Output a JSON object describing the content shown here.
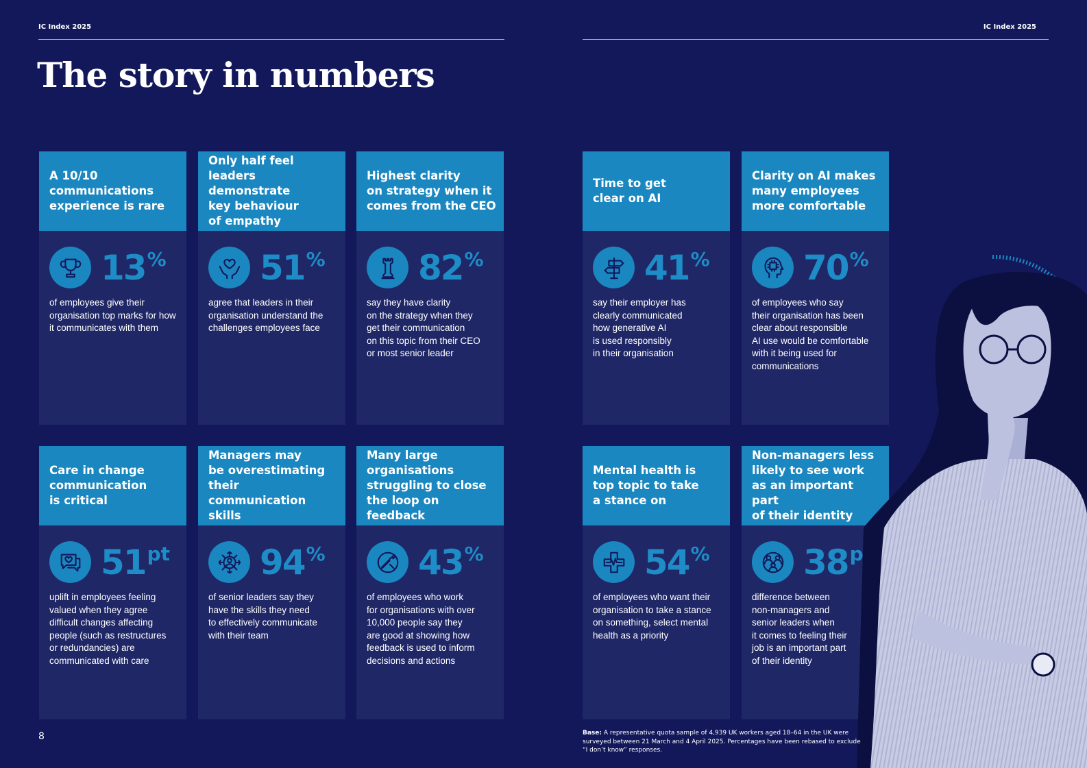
{
  "header": {
    "left_label": "IC Index 2025",
    "right_label": "IC Index 2025"
  },
  "page_title": "The story in numbers",
  "cards": [
    {
      "heading": "A 10/10\ncommunications\nexperience is rare",
      "icon": "trophy-icon",
      "number": "13",
      "unit": "%",
      "description": "of employees give their\norganisation top marks for how\nit communicates with them"
    },
    {
      "heading": "Only half feel\nleaders demonstrate\nkey behaviour\nof empathy",
      "icon": "heart-hands-icon",
      "number": "51",
      "unit": "%",
      "description": "agree that leaders in their\norganisation understand the\nchallenges employees face"
    },
    {
      "heading": "Highest clarity\non strategy when it\ncomes from the CEO",
      "icon": "chess-rook-icon",
      "number": "82",
      "unit": "%",
      "description": "say they have clarity\non the strategy when they\nget their communication\non this topic from their CEO\nor most senior leader"
    },
    {
      "heading": "Time to get\nclear on AI",
      "icon": "signpost-icon",
      "number": "41",
      "unit": "%",
      "description": "say their employer has\nclearly communicated\nhow generative AI\nis used responsibly\nin their organisation"
    },
    {
      "heading": "Clarity on AI makes\nmany employees\nmore comfortable",
      "icon": "head-chip-icon",
      "number": "70",
      "unit": "%",
      "description": "of employees who say\ntheir organisation has been\nclear about responsible\nAI use would be comfortable\nwith it being used for\ncommunications"
    },
    {
      "heading": "Care in change\ncommunication\nis critical",
      "icon": "chat-heart-icon",
      "number": "51",
      "unit": "pt",
      "description": "uplift in employees feeling\nvalued when they agree\ndifficult changes affecting\npeople (such as restructures\nor redundancies) are\ncommunicated with care"
    },
    {
      "heading": "Managers may\nbe overestimating\ntheir communication\nskills",
      "icon": "person-arrows-icon",
      "number": "94",
      "unit": "%",
      "description": "of senior leaders say they\nhave the skills they need\nto effectively communicate\nwith their team"
    },
    {
      "heading": "Many large\norganisations\nstruggling to close\nthe loop on feedback",
      "icon": "feedback-loop-icon",
      "number": "43",
      "unit": "%",
      "description": "of employees who work\nfor organisations with over\n10,000 people say they\nare good at showing how\nfeedback is used to inform\ndecisions and actions"
    },
    {
      "heading": "Mental health is\ntop topic to take\na stance on",
      "icon": "medical-cross-icon",
      "number": "54",
      "unit": "%",
      "description": "of employees who want their\norganisation to take a stance\non something, select mental\nhealth as a priority"
    },
    {
      "heading": "Non-managers less\nlikely to see work\nas an important part\nof their identity",
      "icon": "people-group-icon",
      "number": "38",
      "unit": "pt",
      "description": "difference between\nnon-managers and\nsenior leaders when\nit comes to feeling their\njob is an important part\nof their identity"
    }
  ],
  "footnote": {
    "label": "Base:",
    "text": " A representative quota sample of 4,939 UK workers aged 18–64 in the UK were surveyed between 21 March and 4 April 2025. Percentages have been rebased to exclude “I don’t know” responses."
  },
  "page_number": "8",
  "colors": {
    "background": "#12185a",
    "card_body": "#1f2766",
    "card_head": "#1b87c0",
    "accent_number": "#1e8cc6"
  }
}
